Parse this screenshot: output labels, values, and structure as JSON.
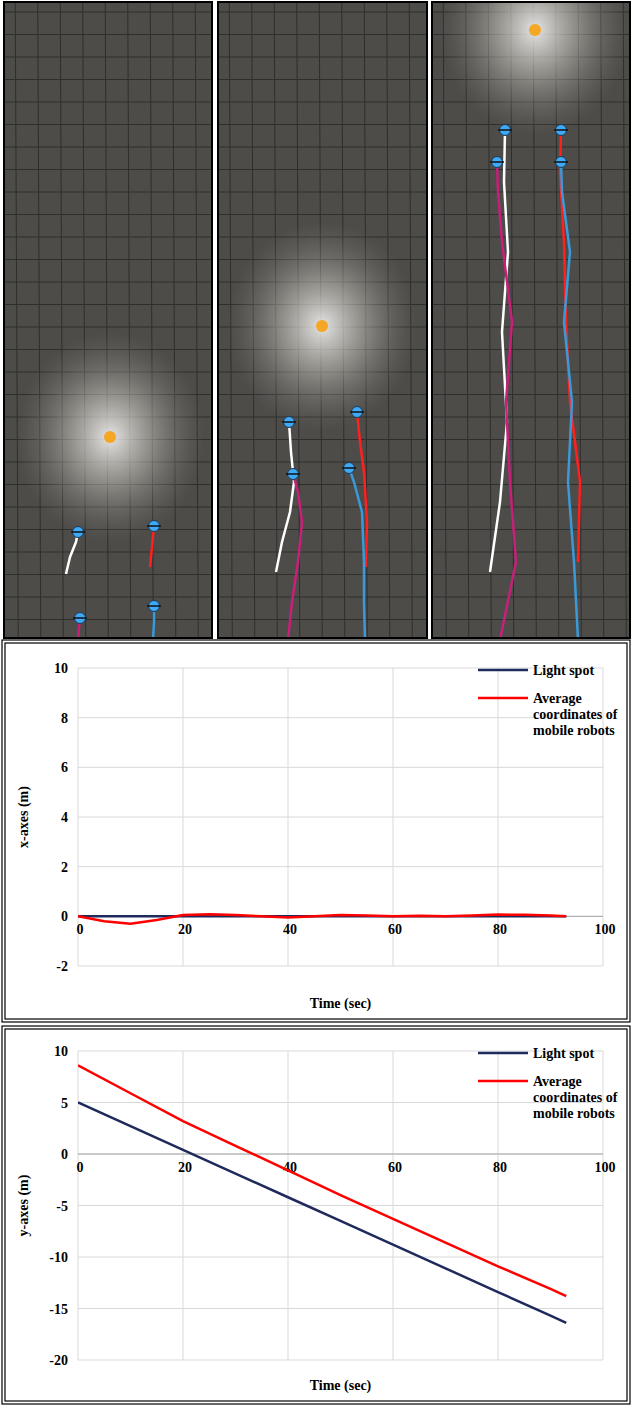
{
  "chart_data": [
    {
      "type": "line",
      "x_label": "Time (sec)",
      "y_label": "x-axes (m)",
      "x": [
        0,
        5,
        10,
        15,
        20,
        25,
        30,
        35,
        40,
        45,
        50,
        55,
        60,
        65,
        70,
        75,
        80,
        85,
        90,
        93
      ],
      "xlim": [
        0,
        100
      ],
      "xticks": [
        0,
        20,
        40,
        60,
        80,
        100
      ],
      "ylim": [
        -2,
        10
      ],
      "yticks": [
        -2,
        0,
        2,
        4,
        6,
        8,
        10
      ],
      "grid": true,
      "legend": "upper right",
      "series": [
        {
          "name": "Light spot",
          "color": "#1f2a5c",
          "values": [
            0,
            0,
            0,
            0,
            0,
            0,
            0,
            0,
            0,
            0,
            0,
            0,
            0,
            0,
            0,
            0,
            0,
            0,
            0,
            0
          ]
        },
        {
          "name": "Average coordinates of mobile robots",
          "color": "#ff0000",
          "values": [
            0,
            -0.2,
            -0.3,
            -0.15,
            0.05,
            0.08,
            0.05,
            0,
            -0.05,
            0,
            0.05,
            0.03,
            0,
            0.02,
            0,
            0.03,
            0.07,
            0.06,
            0.03,
            0
          ]
        }
      ]
    },
    {
      "type": "line",
      "x_label": "Time (sec)",
      "y_label": "y-axes (m)",
      "x": [
        0,
        10,
        20,
        30,
        40,
        50,
        60,
        70,
        80,
        90,
        93
      ],
      "xlim": [
        0,
        100
      ],
      "xticks": [
        0,
        20,
        40,
        60,
        80,
        100
      ],
      "ylim": [
        -20,
        10
      ],
      "yticks": [
        -20,
        -15,
        -10,
        -5,
        0,
        5,
        10
      ],
      "grid": true,
      "legend": "upper right",
      "series": [
        {
          "name": "Light spot",
          "color": "#1f2a5c",
          "values": [
            5,
            2.7,
            0.4,
            -1.9,
            -4.2,
            -6.5,
            -8.8,
            -11.1,
            -13.4,
            -15.7,
            -16.4
          ]
        },
        {
          "name": "Average coordinates of mobile robots",
          "color": "#ff0000",
          "values": [
            8.6,
            5.9,
            3.2,
            0.8,
            -1.6,
            -4.0,
            -6.3,
            -8.6,
            -10.9,
            -13.1,
            -13.8
          ]
        }
      ]
    }
  ]
}
